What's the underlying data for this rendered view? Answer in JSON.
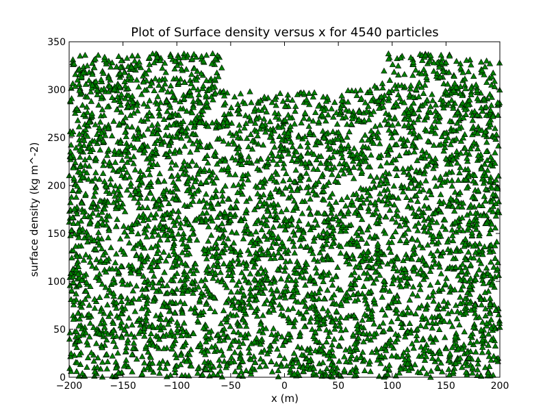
{
  "chart_data": {
    "type": "scatter",
    "title": "Plot of Surface density versus x for 4540 particles",
    "xlabel": "x (m)",
    "ylabel": "surface density (kg m^-2)",
    "xlim": [
      -200,
      200
    ],
    "ylim": [
      0,
      350
    ],
    "xticks": [
      -200,
      -150,
      -100,
      -50,
      0,
      50,
      100,
      150,
      200
    ],
    "yticks": [
      0,
      50,
      100,
      150,
      200,
      250,
      300,
      350
    ],
    "grid": false,
    "legend": "none",
    "marker": "triangle-up",
    "marker_color": "#008000",
    "marker_edge_color": "#000000",
    "particle_count": 4540,
    "series": [
      {
        "distribution": "uniform-with-upper-boundary",
        "upper_boundary": [
          [
            -200,
            338
          ],
          [
            -150,
            338
          ],
          [
            -100,
            338
          ],
          [
            -60,
            338
          ],
          [
            -55,
            300
          ],
          [
            -20,
            298
          ],
          [
            0,
            298
          ],
          [
            20,
            298
          ],
          [
            50,
            298
          ],
          [
            80,
            302
          ],
          [
            95,
            338
          ],
          [
            150,
            338
          ],
          [
            200,
            330
          ]
        ]
      }
    ]
  }
}
